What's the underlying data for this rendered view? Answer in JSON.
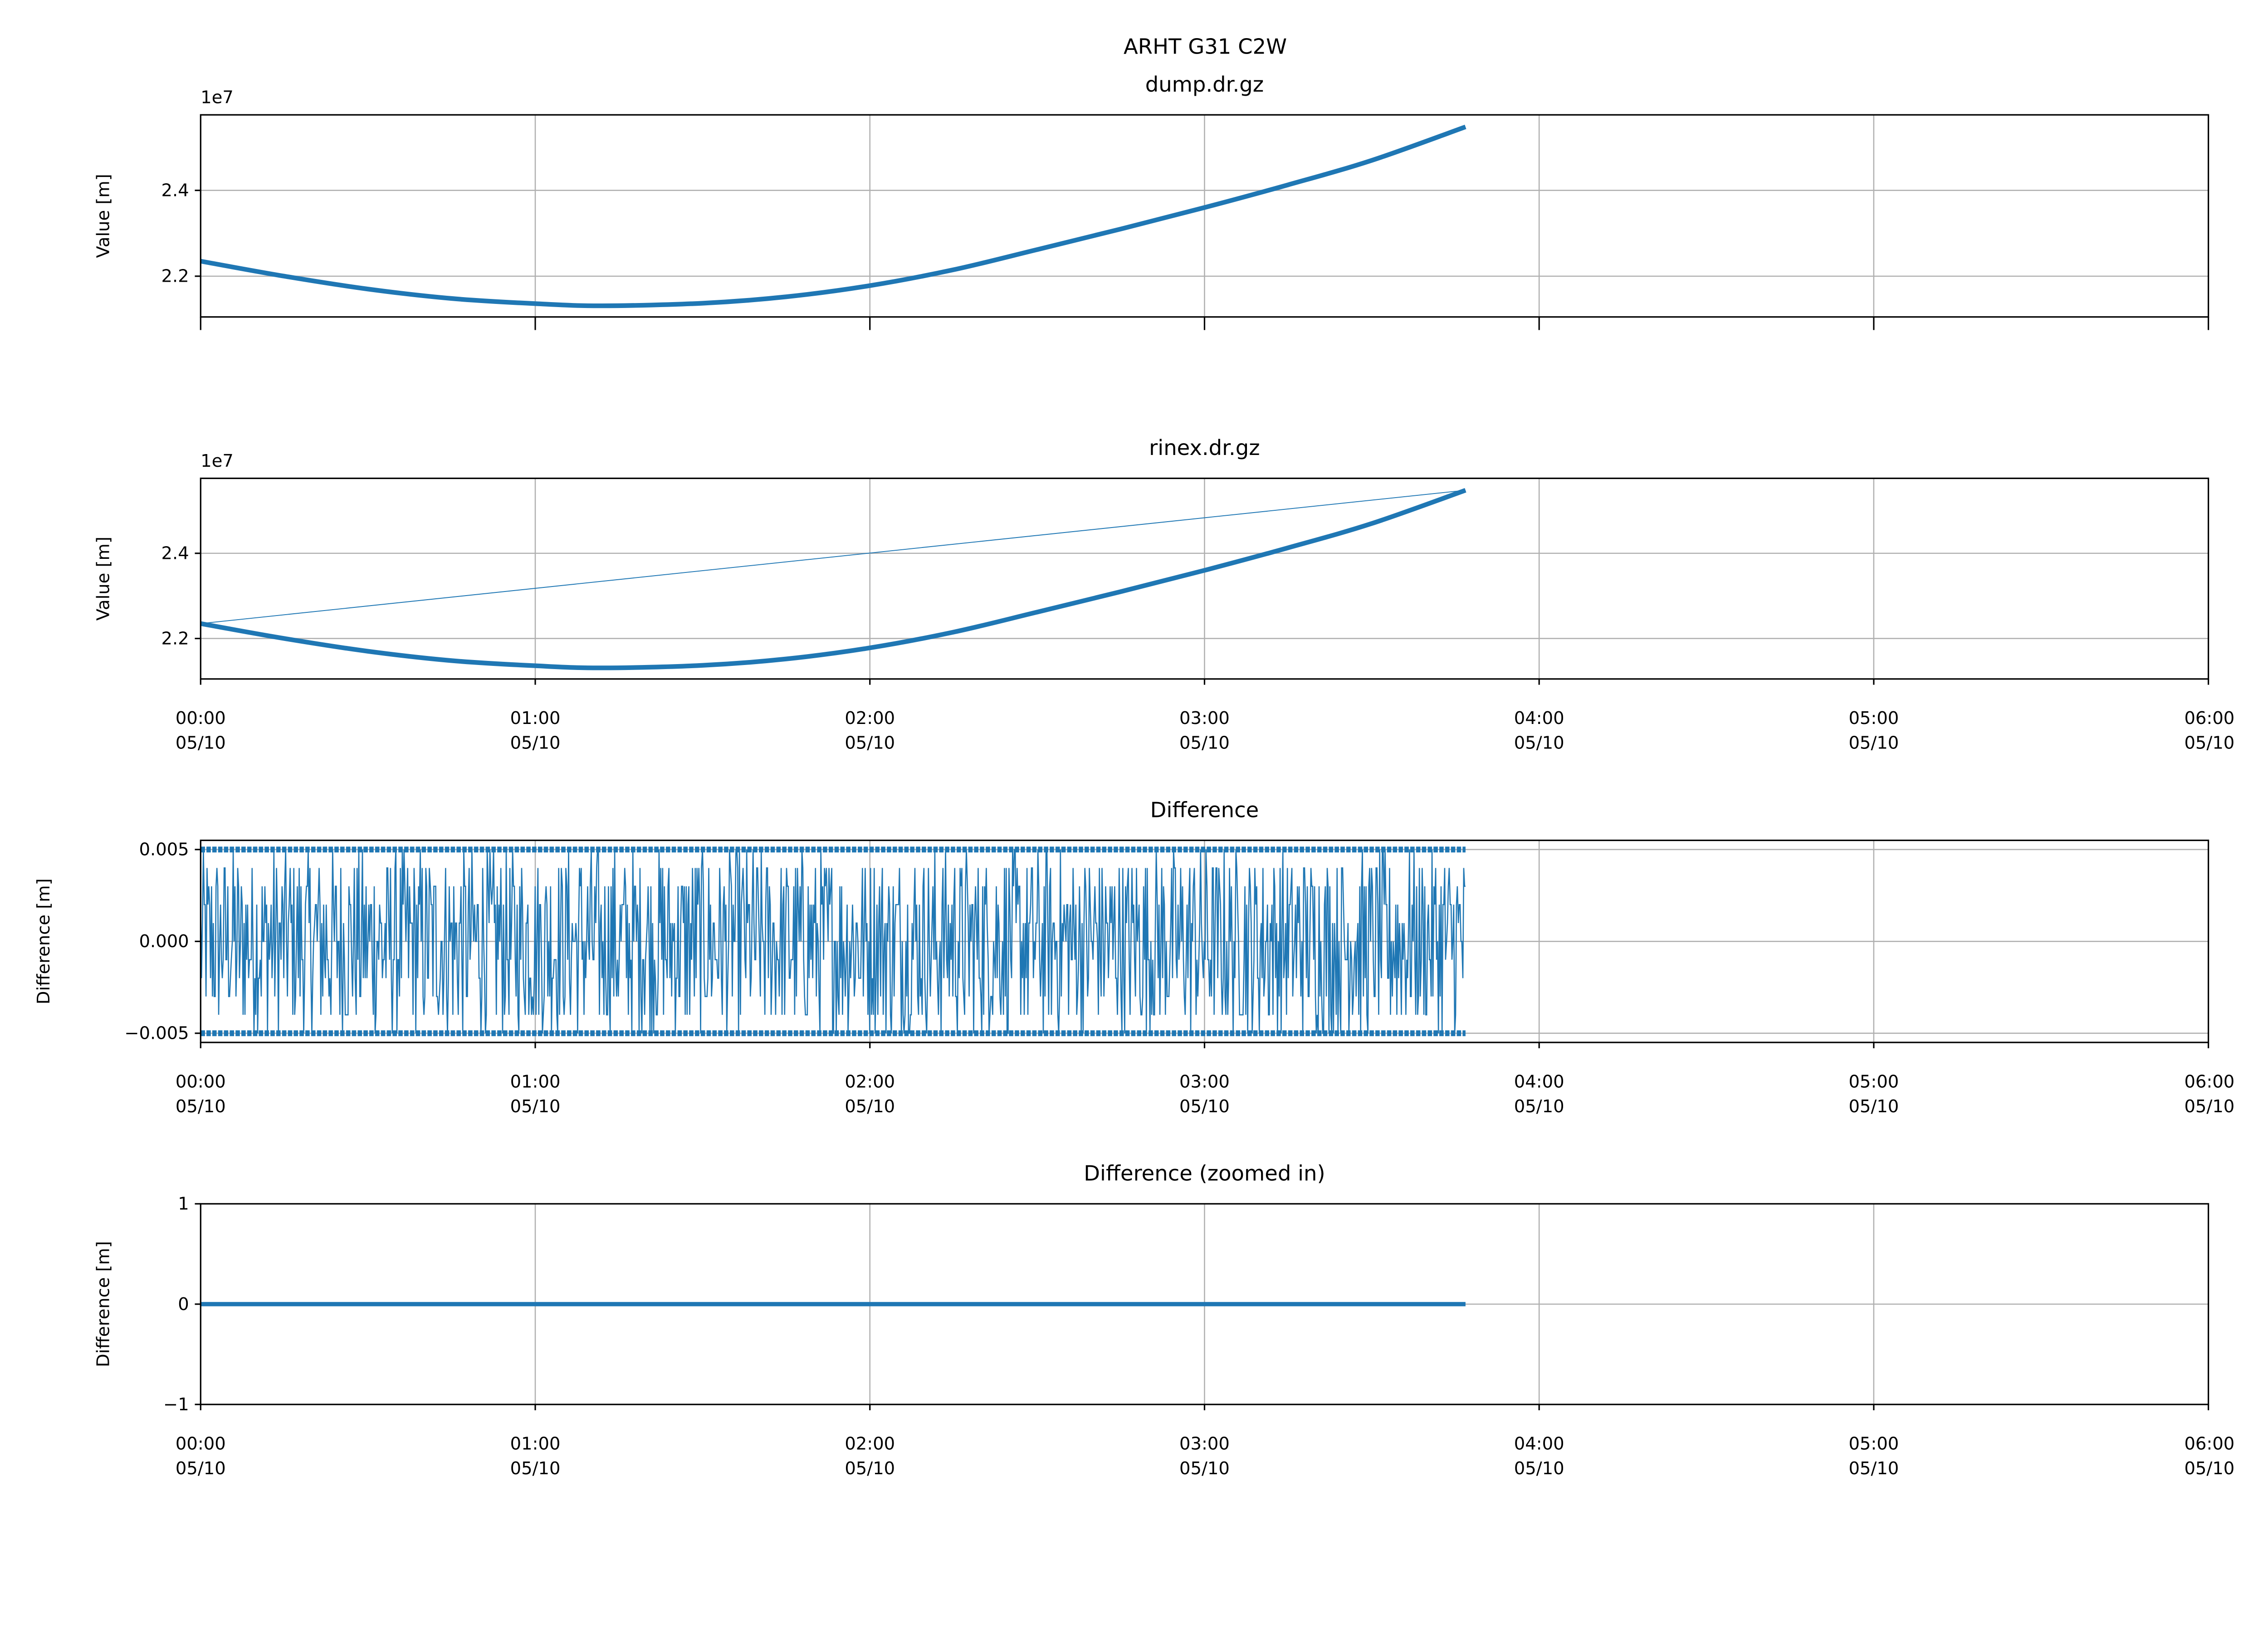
{
  "suptitle": "ARHT G31 C2W",
  "colors": {
    "series": "#1f77b4",
    "grid": "#b0b0b0"
  },
  "chart_data": [
    {
      "type": "line",
      "title": "dump.dr.gz",
      "ylabel": "Value [m]",
      "offset_label": "1e7",
      "xlim_hours": [
        0,
        6
      ],
      "ylim": [
        2.105,
        2.576
      ],
      "yticks": [
        2.2,
        2.4
      ],
      "ytick_labels": [
        "2.2",
        "2.4"
      ],
      "xtick_labels_visible": false,
      "x_hours": [
        0,
        0.25,
        0.5,
        0.75,
        1.0,
        1.2,
        1.5,
        1.75,
        2.0,
        2.25,
        2.5,
        2.75,
        3.0,
        3.25,
        3.5,
        3.78
      ],
      "values": [
        2.235,
        2.2,
        2.17,
        2.148,
        2.136,
        2.131,
        2.137,
        2.152,
        2.178,
        2.215,
        2.262,
        2.31,
        2.36,
        2.413,
        2.47,
        2.548
      ],
      "grid": true
    },
    {
      "type": "line",
      "title": "rinex.dr.gz",
      "ylabel": "Value [m]",
      "offset_label": "1e7",
      "xlim_hours": [
        0,
        6
      ],
      "ylim": [
        2.105,
        2.576
      ],
      "yticks": [
        2.2,
        2.4
      ],
      "ytick_labels": [
        "2.2",
        "2.4"
      ],
      "x_hours": [
        0,
        0.25,
        0.5,
        0.75,
        1.0,
        1.2,
        1.5,
        1.75,
        2.0,
        2.25,
        2.5,
        2.75,
        3.0,
        3.25,
        3.5,
        3.78
      ],
      "values": [
        2.235,
        2.2,
        2.17,
        2.148,
        2.136,
        2.131,
        2.137,
        2.152,
        2.178,
        2.215,
        2.262,
        2.31,
        2.36,
        2.413,
        2.47,
        2.548
      ],
      "connector_line": {
        "from": [
          0,
          2.235
        ],
        "to": [
          3.78,
          2.548
        ]
      },
      "grid": true
    },
    {
      "type": "line",
      "title": "Difference",
      "ylabel": "Difference [m]",
      "xlim_hours": [
        0,
        6
      ],
      "ylim": [
        -0.0055,
        0.0055
      ],
      "yticks": [
        -0.005,
        0,
        0.005
      ],
      "ytick_labels": [
        "−0.005",
        "0.000",
        "0.005"
      ],
      "data_x_range_hours": [
        0,
        3.78
      ],
      "value_range": [
        -0.005,
        0.005
      ],
      "quantization_step": 0.001,
      "grid": true
    },
    {
      "type": "line",
      "title": "Difference (zoomed in)",
      "ylabel": "Difference [m]",
      "xlim_hours": [
        0,
        6
      ],
      "ylim": [
        -1,
        1
      ],
      "yticks": [
        -1,
        0,
        1
      ],
      "ytick_labels": [
        "−1",
        "0",
        "1"
      ],
      "data_x_range_hours": [
        0,
        3.78
      ],
      "value": 0,
      "grid": true
    }
  ],
  "xticks": {
    "hours": [
      0,
      1,
      2,
      3,
      4,
      5,
      6
    ],
    "time_labels": [
      "00:00",
      "01:00",
      "02:00",
      "03:00",
      "04:00",
      "05:00",
      "06:00"
    ],
    "date_label": "05/10"
  }
}
